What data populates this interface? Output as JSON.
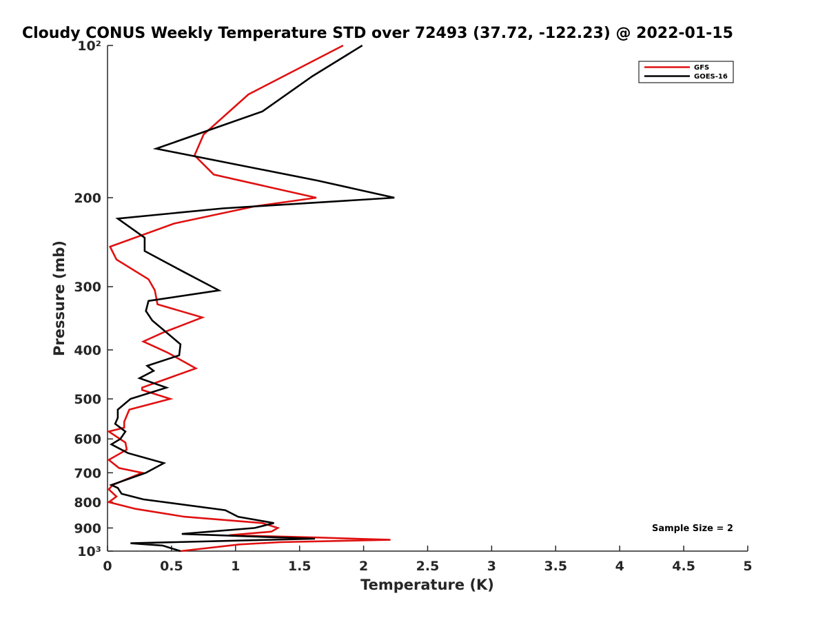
{
  "chart_data": {
    "type": "line",
    "title": "Cloudy CONUS Weekly Temperature STD over 72493 (37.72, -122.23) @ 2022-01-15",
    "xlabel": "Temperature (K)",
    "ylabel": "Pressure (mb)",
    "xlim": [
      0,
      5
    ],
    "ylim": [
      100,
      1000
    ],
    "y_scale": "log",
    "y_reversed": true,
    "x_ticks": [
      0,
      0.5,
      1,
      1.5,
      2,
      2.5,
      3,
      3.5,
      4,
      4.5,
      5
    ],
    "x_tick_labels": [
      "0",
      "0.5",
      "1",
      "1.5",
      "2",
      "2.5",
      "3",
      "3.5",
      "4",
      "4.5",
      "5"
    ],
    "y_ticks": [
      100,
      200,
      300,
      400,
      500,
      600,
      700,
      800,
      900,
      1000
    ],
    "y_tick_labels": [
      "10²",
      "200",
      "300",
      "400",
      "500",
      "600",
      "700",
      "800",
      "900",
      "10³"
    ],
    "grid": false,
    "legend_position": "top-right",
    "annotation": "Sample Size = 2",
    "series": [
      {
        "name": "GFS",
        "color": "#e01010",
        "points": [
          [
            1.84,
            100
          ],
          [
            1.1,
            125
          ],
          [
            0.75,
            150
          ],
          [
            0.68,
            165
          ],
          [
            0.83,
            180
          ],
          [
            1.63,
            200
          ],
          [
            1.15,
            208
          ],
          [
            0.52,
            225
          ],
          [
            0.02,
            250
          ],
          [
            0.07,
            265
          ],
          [
            0.32,
            290
          ],
          [
            0.37,
            305
          ],
          [
            0.39,
            325
          ],
          [
            0.74,
            345
          ],
          [
            0.43,
            370
          ],
          [
            0.28,
            385
          ],
          [
            0.47,
            405
          ],
          [
            0.69,
            435
          ],
          [
            0.27,
            475
          ],
          [
            0.27,
            480
          ],
          [
            0.49,
            500
          ],
          [
            0.17,
            525
          ],
          [
            0.13,
            555
          ],
          [
            0.13,
            570
          ],
          [
            0.01,
            580
          ],
          [
            0.14,
            610
          ],
          [
            0.15,
            630
          ],
          [
            0.01,
            660
          ],
          [
            0.09,
            685
          ],
          [
            0.27,
            700
          ],
          [
            0.04,
            740
          ],
          [
            0.01,
            755
          ],
          [
            0.07,
            780
          ],
          [
            0.01,
            800
          ],
          [
            0.22,
            825
          ],
          [
            0.6,
            855
          ],
          [
            1.21,
            880
          ],
          [
            1.33,
            900
          ],
          [
            1.28,
            915
          ],
          [
            0.95,
            930
          ],
          [
            1.65,
            940
          ],
          [
            2.21,
            950
          ],
          [
            1.35,
            960
          ],
          [
            1.03,
            970
          ],
          [
            0.57,
            1000
          ]
        ]
      },
      {
        "name": "GOES-16",
        "color": "#000000",
        "points": [
          [
            1.99,
            100
          ],
          [
            1.6,
            115
          ],
          [
            1.21,
            135
          ],
          [
            0.38,
            160
          ],
          [
            1.64,
            185
          ],
          [
            2.24,
            200
          ],
          [
            0.9,
            210
          ],
          [
            0.08,
            220
          ],
          [
            0.29,
            240
          ],
          [
            0.29,
            255
          ],
          [
            0.59,
            280
          ],
          [
            0.87,
            305
          ],
          [
            0.32,
            320
          ],
          [
            0.3,
            335
          ],
          [
            0.35,
            350
          ],
          [
            0.57,
            390
          ],
          [
            0.56,
            410
          ],
          [
            0.31,
            430
          ],
          [
            0.36,
            440
          ],
          [
            0.25,
            455
          ],
          [
            0.46,
            475
          ],
          [
            0.18,
            500
          ],
          [
            0.08,
            525
          ],
          [
            0.08,
            545
          ],
          [
            0.06,
            560
          ],
          [
            0.14,
            580
          ],
          [
            0.1,
            600
          ],
          [
            0.03,
            615
          ],
          [
            0.16,
            640
          ],
          [
            0.44,
            670
          ],
          [
            0.3,
            700
          ],
          [
            0.03,
            740
          ],
          [
            0.08,
            750
          ],
          [
            0.11,
            770
          ],
          [
            0.28,
            790
          ],
          [
            0.92,
            830
          ],
          [
            1.02,
            855
          ],
          [
            1.3,
            880
          ],
          [
            1.15,
            900
          ],
          [
            0.58,
            925
          ],
          [
            1.62,
            945
          ],
          [
            0.18,
            965
          ],
          [
            0.43,
            975
          ],
          [
            0.57,
            1000
          ]
        ]
      }
    ]
  }
}
